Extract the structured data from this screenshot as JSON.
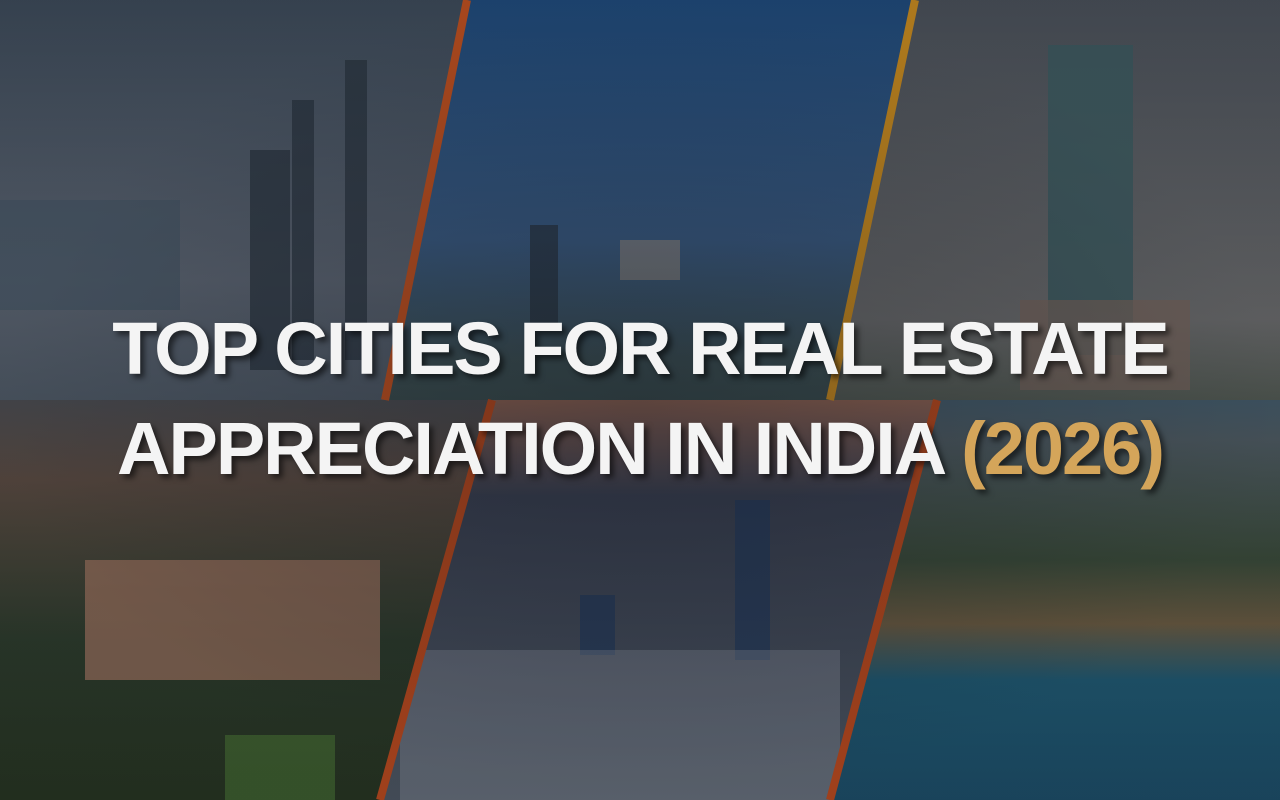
{
  "title": {
    "line1": "TOP CITIES FOR REAL ESTATE",
    "line2_main": "APPRECIATION IN INDIA",
    "line2_year": "(2026)"
  },
  "colors": {
    "title_text": "#f4f4f4",
    "year_accent": "#d4a55a",
    "divider": "#c0501e"
  },
  "panels": [
    "city-skyline-bay",
    "aerial-city-greenery",
    "tall-tower-skyline",
    "heritage-palace",
    "sunset-skyline",
    "beach-coastline-skyline"
  ]
}
